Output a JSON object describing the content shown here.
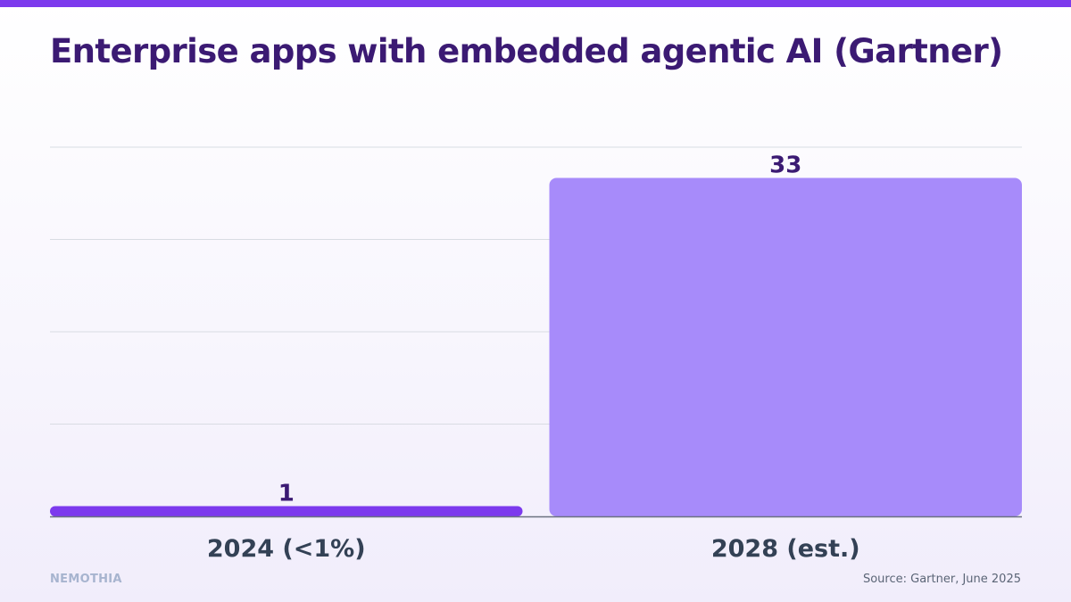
{
  "title": "Enterprise apps with embedded agentic AI (Gartner)",
  "brand": "NEMOTHIA",
  "source": "Source: Gartner, June 2025",
  "colors": {
    "accent": "#7c3aed",
    "title": "#3b1a73",
    "bar_2024": "#7c3aed",
    "bar_2028": "#a78bfa",
    "label": "#3b1a73",
    "tick": "#334155",
    "grid": "#d9dce3"
  },
  "chart_data": {
    "type": "bar",
    "categories": [
      "2024 (<1%)",
      "2028 (est.)"
    ],
    "values": [
      1,
      33
    ],
    "data_labels": [
      "1",
      "33"
    ],
    "ylim": [
      0,
      36
    ],
    "grid": true,
    "legend": "none"
  }
}
